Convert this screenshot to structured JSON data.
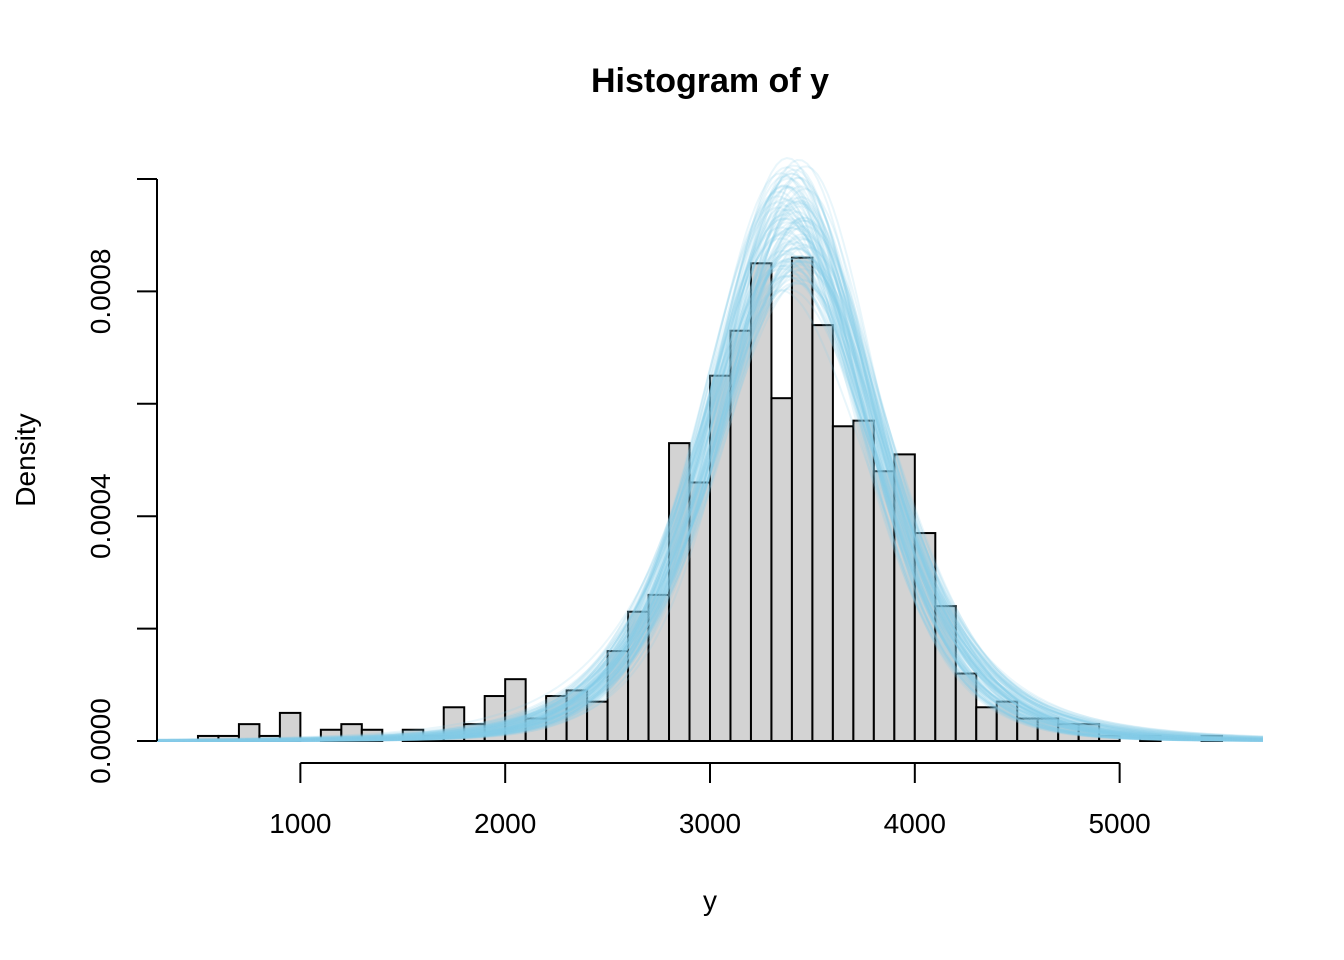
{
  "chart_data": {
    "type": "bar",
    "title": "Histogram of y",
    "xlabel": "y",
    "ylabel": "Density",
    "xlim": [
      300,
      5700
    ],
    "ylim": [
      0,
      0.001
    ],
    "x_ticks": [
      1000,
      2000,
      3000,
      4000,
      5000
    ],
    "x_tick_labels": [
      "1000",
      "2000",
      "3000",
      "4000",
      "5000"
    ],
    "y_ticks": [
      0,
      0.0002,
      0.0004,
      0.0006,
      0.0008,
      0.001
    ],
    "y_tick_labels": [
      "0.0000",
      "",
      "0.0004",
      "",
      "0.0008",
      ""
    ],
    "bin_start": 500,
    "bin_width": 100,
    "values": [
      9e-06,
      9e-06,
      3e-05,
      9e-06,
      5e-05,
      0,
      2e-05,
      3e-05,
      2e-05,
      0,
      2e-05,
      9e-06,
      6e-05,
      3e-05,
      8e-05,
      0.00011,
      4e-05,
      8e-05,
      9e-05,
      7e-05,
      0.00016,
      0.00023,
      0.00026,
      0.00053,
      0.00046,
      0.00065,
      0.00073,
      0.00085,
      0.00061,
      0.00086,
      0.00074,
      0.00056,
      0.00057,
      0.00048,
      0.00051,
      0.00037,
      0.00024,
      0.00012,
      6e-05,
      7e-05,
      4e-05,
      4e-05,
      3e-05,
      3e-05,
      9e-06,
      0,
      9e-06,
      0,
      0,
      9e-06
    ],
    "overlay": {
      "type": "density-draws",
      "count": 100,
      "center": 3400,
      "scale": 420,
      "color": "#87CEEB"
    },
    "bar_fill": "#D3D3D3",
    "grid": false
  }
}
